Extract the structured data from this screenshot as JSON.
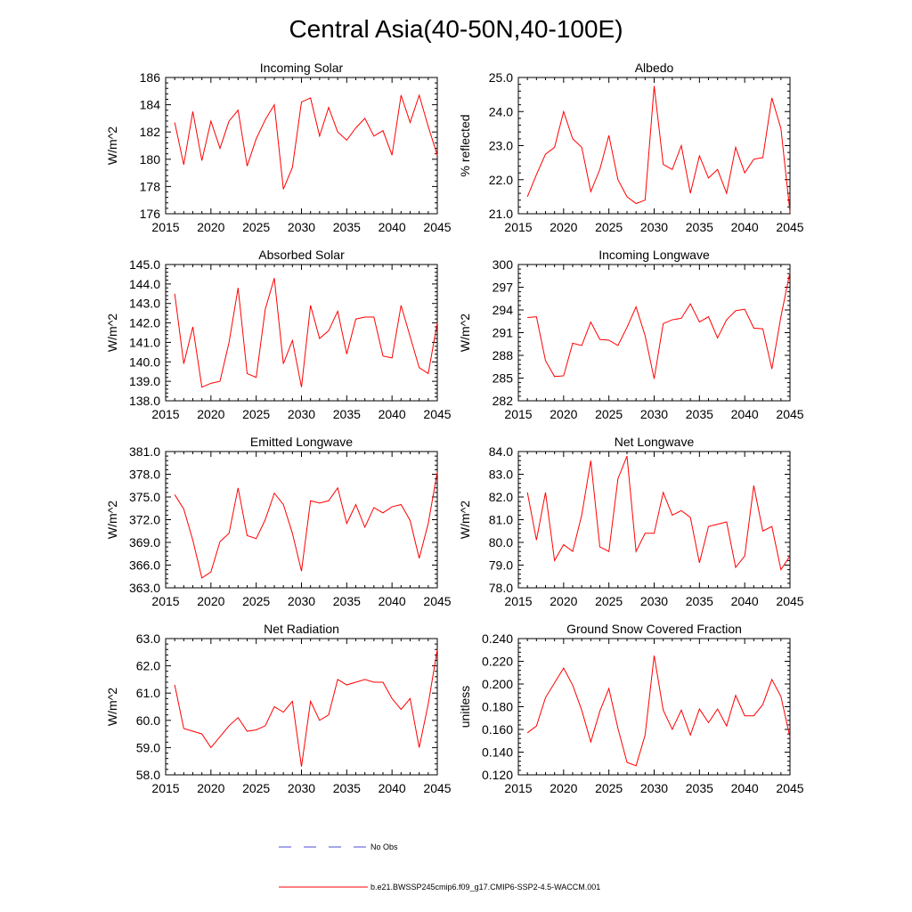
{
  "figure_title": "Central Asia(40-50N,40-100E)",
  "legend": {
    "no_obs_label": "No Obs",
    "model_label": "b.e21.BWSSP245cmip6.f09_g17.CMIP6-SSP2-4.5-WACCM.001",
    "no_obs_color": "#4b4bd4",
    "model_color": "#ff0000"
  },
  "chart_data": [
    {
      "type": "line",
      "title": "Incoming Solar",
      "ylabel": "W/m^2",
      "xlabel": "",
      "xlim": [
        2015,
        2045
      ],
      "ylim": [
        176,
        186
      ],
      "x_ticks": [
        2015,
        2020,
        2025,
        2030,
        2035,
        2040,
        2045
      ],
      "y_ticks": [
        "176",
        "178",
        "180",
        "182",
        "184",
        "186"
      ],
      "y_tick_values": [
        176,
        178,
        180,
        182,
        184,
        186
      ],
      "x": [
        2016,
        2017,
        2018,
        2019,
        2020,
        2021,
        2022,
        2023,
        2024,
        2025,
        2026,
        2027,
        2028,
        2029,
        2030,
        2031,
        2032,
        2033,
        2034,
        2035,
        2036,
        2037,
        2038,
        2039,
        2040,
        2041,
        2042,
        2043,
        2044,
        2045
      ],
      "series": [
        {
          "name": "b.e21.BWSSP245cmip6.f09_g17.CMIP6-SSP2-4.5-WACCM.001",
          "values": [
            182.7,
            179.6,
            183.5,
            179.9,
            182.8,
            180.8,
            182.8,
            183.6,
            179.5,
            181.5,
            182.9,
            184.0,
            177.8,
            179.4,
            184.2,
            184.5,
            181.7,
            183.8,
            182.0,
            181.4,
            182.3,
            183.0,
            181.7,
            182.1,
            180.3,
            184.7,
            182.7,
            184.7,
            182.4,
            180.3
          ]
        }
      ]
    },
    {
      "type": "line",
      "title": "Albedo",
      "ylabel": "% reflected",
      "xlabel": "",
      "xlim": [
        2015,
        2045
      ],
      "ylim": [
        21.0,
        25.0
      ],
      "x_ticks": [
        2015,
        2020,
        2025,
        2030,
        2035,
        2040,
        2045
      ],
      "y_ticks": [
        "21.0",
        "22.0",
        "23.0",
        "24.0",
        "25.0"
      ],
      "y_tick_values": [
        21.0,
        22.0,
        23.0,
        24.0,
        25.0
      ],
      "x": [
        2016,
        2017,
        2018,
        2019,
        2020,
        2021,
        2022,
        2023,
        2024,
        2025,
        2026,
        2027,
        2028,
        2029,
        2030,
        2031,
        2032,
        2033,
        2034,
        2035,
        2036,
        2037,
        2038,
        2039,
        2040,
        2041,
        2042,
        2043,
        2044,
        2045
      ],
      "series": [
        {
          "name": "b.e21.BWSSP245cmip6.f09_g17.CMIP6-SSP2-4.5-WACCM.001",
          "values": [
            21.5,
            22.15,
            22.75,
            22.95,
            24.0,
            23.2,
            22.95,
            21.65,
            22.3,
            23.3,
            22.0,
            21.5,
            21.3,
            21.4,
            24.75,
            22.45,
            22.3,
            23.0,
            21.6,
            22.7,
            22.05,
            22.3,
            21.6,
            22.95,
            22.2,
            22.6,
            22.65,
            24.4,
            23.5,
            21.05
          ]
        }
      ]
    },
    {
      "type": "line",
      "title": "Absorbed Solar",
      "ylabel": "W/m^2",
      "xlabel": "",
      "xlim": [
        2015,
        2045
      ],
      "ylim": [
        138.0,
        145.0
      ],
      "x_ticks": [
        2015,
        2020,
        2025,
        2030,
        2035,
        2040,
        2045
      ],
      "y_ticks": [
        "138.0",
        "139.0",
        "140.0",
        "141.0",
        "142.0",
        "143.0",
        "144.0",
        "145.0"
      ],
      "y_tick_values": [
        138.0,
        139.0,
        140.0,
        141.0,
        142.0,
        143.0,
        144.0,
        145.0
      ],
      "x": [
        2016,
        2017,
        2018,
        2019,
        2020,
        2021,
        2022,
        2023,
        2024,
        2025,
        2026,
        2027,
        2028,
        2029,
        2030,
        2031,
        2032,
        2033,
        2034,
        2035,
        2036,
        2037,
        2038,
        2039,
        2040,
        2041,
        2042,
        2043,
        2044,
        2045
      ],
      "series": [
        {
          "name": "b.e21.BWSSP245cmip6.f09_g17.CMIP6-SSP2-4.5-WACCM.001",
          "values": [
            143.5,
            139.9,
            141.8,
            138.7,
            138.9,
            139.0,
            141.0,
            143.8,
            139.4,
            139.2,
            142.7,
            144.3,
            139.9,
            141.1,
            138.7,
            142.9,
            141.2,
            141.6,
            142.6,
            140.4,
            142.2,
            142.3,
            142.3,
            140.3,
            140.2,
            142.9,
            141.3,
            139.7,
            139.4,
            142.0
          ]
        }
      ]
    },
    {
      "type": "line",
      "title": "Incoming Longwave",
      "ylabel": "W/m^2",
      "xlabel": "",
      "xlim": [
        2015,
        2045
      ],
      "ylim": [
        282,
        300
      ],
      "x_ticks": [
        2015,
        2020,
        2025,
        2030,
        2035,
        2040,
        2045
      ],
      "y_ticks": [
        "282",
        "285",
        "288",
        "291",
        "294",
        "297",
        "300"
      ],
      "y_tick_values": [
        282,
        285,
        288,
        291,
        294,
        297,
        300
      ],
      "x": [
        2016,
        2017,
        2018,
        2019,
        2020,
        2021,
        2022,
        2023,
        2024,
        2025,
        2026,
        2027,
        2028,
        2029,
        2030,
        2031,
        2032,
        2033,
        2034,
        2035,
        2036,
        2037,
        2038,
        2039,
        2040,
        2041,
        2042,
        2043,
        2044,
        2045
      ],
      "series": [
        {
          "name": "b.e21.BWSSP245cmip6.f09_g17.CMIP6-SSP2-4.5-WACCM.001",
          "values": [
            293.0,
            293.1,
            287.3,
            285.2,
            285.3,
            289.6,
            289.3,
            292.4,
            290.1,
            290.0,
            289.3,
            291.7,
            294.4,
            290.6,
            284.9,
            292.2,
            292.7,
            292.9,
            294.8,
            292.4,
            293.1,
            290.3,
            292.7,
            293.9,
            294.1,
            291.6,
            291.5,
            286.2,
            293.1,
            299.0
          ]
        }
      ]
    },
    {
      "type": "line",
      "title": "Emitted Longwave",
      "ylabel": "W/m^2",
      "xlabel": "",
      "xlim": [
        2015,
        2045
      ],
      "ylim": [
        363.0,
        381.0
      ],
      "x_ticks": [
        2015,
        2020,
        2025,
        2030,
        2035,
        2040,
        2045
      ],
      "y_ticks": [
        "363.0",
        "366.0",
        "369.0",
        "372.0",
        "375.0",
        "378.0",
        "381.0"
      ],
      "y_tick_values": [
        363.0,
        366.0,
        369.0,
        372.0,
        375.0,
        378.0,
        381.0
      ],
      "x": [
        2016,
        2017,
        2018,
        2019,
        2020,
        2021,
        2022,
        2023,
        2024,
        2025,
        2026,
        2027,
        2028,
        2029,
        2030,
        2031,
        2032,
        2033,
        2034,
        2035,
        2036,
        2037,
        2038,
        2039,
        2040,
        2041,
        2042,
        2043,
        2044,
        2045
      ],
      "series": [
        {
          "name": "b.e21.BWSSP245cmip6.f09_g17.CMIP6-SSP2-4.5-WACCM.001",
          "values": [
            375.3,
            373.4,
            369.3,
            364.3,
            365.1,
            369.1,
            370.2,
            376.2,
            369.9,
            369.5,
            372.0,
            375.5,
            374.0,
            370.2,
            365.2,
            374.5,
            374.2,
            374.5,
            376.2,
            371.5,
            374.0,
            371.0,
            373.6,
            372.9,
            373.7,
            374.0,
            371.9,
            366.9,
            371.5,
            378.3
          ]
        }
      ]
    },
    {
      "type": "line",
      "title": "Net Longwave",
      "ylabel": "W/m^2",
      "xlabel": "",
      "xlim": [
        2015,
        2045
      ],
      "ylim": [
        78.0,
        84.0
      ],
      "x_ticks": [
        2015,
        2020,
        2025,
        2030,
        2035,
        2040,
        2045
      ],
      "y_ticks": [
        "78.0",
        "79.0",
        "80.0",
        "81.0",
        "82.0",
        "83.0",
        "84.0"
      ],
      "y_tick_values": [
        78.0,
        79.0,
        80.0,
        81.0,
        82.0,
        83.0,
        84.0
      ],
      "x": [
        2016,
        2017,
        2018,
        2019,
        2020,
        2021,
        2022,
        2023,
        2024,
        2025,
        2026,
        2027,
        2028,
        2029,
        2030,
        2031,
        2032,
        2033,
        2034,
        2035,
        2036,
        2037,
        2038,
        2039,
        2040,
        2041,
        2042,
        2043,
        2044,
        2045
      ],
      "series": [
        {
          "name": "b.e21.BWSSP245cmip6.f09_g17.CMIP6-SSP2-4.5-WACCM.001",
          "values": [
            82.2,
            80.1,
            82.2,
            79.2,
            79.9,
            79.6,
            81.2,
            83.6,
            79.8,
            79.6,
            82.8,
            83.8,
            79.6,
            80.4,
            80.4,
            82.2,
            81.2,
            81.4,
            81.1,
            79.1,
            80.7,
            80.8,
            80.9,
            78.9,
            79.4,
            82.5,
            80.5,
            80.7,
            78.8,
            79.4
          ]
        }
      ]
    },
    {
      "type": "line",
      "title": "Net Radiation",
      "ylabel": "W/m^2",
      "xlabel": "",
      "xlim": [
        2015,
        2045
      ],
      "ylim": [
        58.0,
        63.0
      ],
      "x_ticks": [
        2015,
        2020,
        2025,
        2030,
        2035,
        2040,
        2045
      ],
      "y_ticks": [
        "58.0",
        "59.0",
        "60.0",
        "61.0",
        "62.0",
        "63.0"
      ],
      "y_tick_values": [
        58.0,
        59.0,
        60.0,
        61.0,
        62.0,
        63.0
      ],
      "x": [
        2016,
        2017,
        2018,
        2019,
        2020,
        2021,
        2022,
        2023,
        2024,
        2025,
        2026,
        2027,
        2028,
        2029,
        2030,
        2031,
        2032,
        2033,
        2034,
        2035,
        2036,
        2037,
        2038,
        2039,
        2040,
        2041,
        2042,
        2043,
        2044,
        2045
      ],
      "series": [
        {
          "name": "b.e21.BWSSP245cmip6.f09_g17.CMIP6-SSP2-4.5-WACCM.001",
          "values": [
            61.3,
            59.7,
            59.6,
            59.5,
            59.0,
            59.4,
            59.8,
            60.1,
            59.6,
            59.65,
            59.8,
            60.5,
            60.3,
            60.7,
            58.3,
            60.7,
            60.0,
            60.2,
            61.5,
            61.3,
            61.4,
            61.5,
            61.4,
            61.4,
            60.8,
            60.4,
            60.8,
            59.0,
            60.6,
            62.6
          ]
        }
      ]
    },
    {
      "type": "line",
      "title": "Ground Snow Covered Fraction",
      "ylabel": "unitless",
      "xlabel": "",
      "xlim": [
        2015,
        2045
      ],
      "ylim": [
        0.12,
        0.24
      ],
      "x_ticks": [
        2015,
        2020,
        2025,
        2030,
        2035,
        2040,
        2045
      ],
      "y_ticks": [
        "0.120",
        "0.140",
        "0.160",
        "0.180",
        "0.200",
        "0.220",
        "0.240"
      ],
      "y_tick_values": [
        0.12,
        0.14,
        0.16,
        0.18,
        0.2,
        0.22,
        0.24
      ],
      "x": [
        2016,
        2017,
        2018,
        2019,
        2020,
        2021,
        2022,
        2023,
        2024,
        2025,
        2026,
        2027,
        2028,
        2029,
        2030,
        2031,
        2032,
        2033,
        2034,
        2035,
        2036,
        2037,
        2038,
        2039,
        2040,
        2041,
        2042,
        2043,
        2044,
        2045
      ],
      "series": [
        {
          "name": "b.e21.BWSSP245cmip6.f09_g17.CMIP6-SSP2-4.5-WACCM.001",
          "values": [
            0.157,
            0.163,
            0.188,
            0.201,
            0.214,
            0.199,
            0.177,
            0.149,
            0.176,
            0.196,
            0.161,
            0.131,
            0.128,
            0.155,
            0.225,
            0.177,
            0.16,
            0.177,
            0.155,
            0.178,
            0.166,
            0.178,
            0.163,
            0.19,
            0.172,
            0.172,
            0.182,
            0.204,
            0.189,
            0.153
          ]
        }
      ]
    }
  ]
}
